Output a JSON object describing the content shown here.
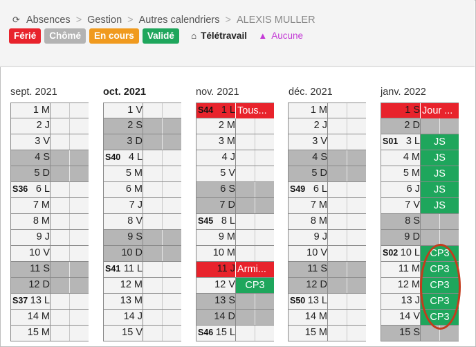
{
  "breadcrumb": {
    "icon": "refresh-icon",
    "items": [
      "Absences",
      "Gestion",
      "Autres calendriers"
    ],
    "current": "ALEXIS MULLER"
  },
  "legend": {
    "badges": [
      {
        "label": "Férié",
        "color": "#e8232c"
      },
      {
        "label": "Chômé",
        "color": "#b3b3b3"
      },
      {
        "label": "En cours",
        "color": "#f09a1e"
      },
      {
        "label": "Validé",
        "color": "#1ea65c"
      }
    ],
    "teletravail": {
      "label": "Télétravail",
      "icon": "home-icon"
    },
    "aucune": {
      "label": "Aucune",
      "icon": "graduation-cap-icon",
      "color": "#c43bd6"
    }
  },
  "months": [
    {
      "title": "sept. 2021",
      "bold": false,
      "days": [
        {
          "day": "1 M"
        },
        {
          "day": "2 J"
        },
        {
          "day": "3 V"
        },
        {
          "day": "4 S",
          "weekend": true
        },
        {
          "day": "5 D",
          "weekend": true
        },
        {
          "day": "6 L",
          "week": "S36"
        },
        {
          "day": "7 M"
        },
        {
          "day": "8 M"
        },
        {
          "day": "9 J"
        },
        {
          "day": "10 V"
        },
        {
          "day": "11 S",
          "weekend": true
        },
        {
          "day": "12 D",
          "weekend": true
        },
        {
          "day": "13 L",
          "week": "S37"
        },
        {
          "day": "14 M"
        },
        {
          "day": "15 M"
        }
      ]
    },
    {
      "title": "oct. 2021",
      "bold": true,
      "days": [
        {
          "day": "1 V"
        },
        {
          "day": "2 S",
          "weekend": true
        },
        {
          "day": "3 D",
          "weekend": true
        },
        {
          "day": "4 L",
          "week": "S40"
        },
        {
          "day": "5 M"
        },
        {
          "day": "6 M"
        },
        {
          "day": "7 J"
        },
        {
          "day": "8 V"
        },
        {
          "day": "9 S",
          "weekend": true
        },
        {
          "day": "10 D",
          "weekend": true
        },
        {
          "day": "11 L",
          "week": "S41"
        },
        {
          "day": "12 M"
        },
        {
          "day": "13 M"
        },
        {
          "day": "14 J"
        },
        {
          "day": "15 V"
        }
      ]
    },
    {
      "title": "nov. 2021",
      "bold": false,
      "days": [
        {
          "day": "1 L",
          "week": "S44",
          "ferie": true,
          "event": "Tous..."
        },
        {
          "day": "2 M"
        },
        {
          "day": "3 M"
        },
        {
          "day": "4 J"
        },
        {
          "day": "5 V"
        },
        {
          "day": "6 S",
          "weekend": true
        },
        {
          "day": "7 D",
          "weekend": true
        },
        {
          "day": "8 L",
          "week": "S45"
        },
        {
          "day": "9 M"
        },
        {
          "day": "10 M"
        },
        {
          "day": "11 J",
          "ferie": true,
          "event": "Armi..."
        },
        {
          "day": "12 V",
          "event": "CP3",
          "status": "valide"
        },
        {
          "day": "13 S",
          "weekend": true
        },
        {
          "day": "14 D",
          "weekend": true
        },
        {
          "day": "15 L",
          "week": "S46"
        }
      ]
    },
    {
      "title": "déc. 2021",
      "bold": false,
      "days": [
        {
          "day": "1 M"
        },
        {
          "day": "2 J"
        },
        {
          "day": "3 V"
        },
        {
          "day": "4 S",
          "weekend": true
        },
        {
          "day": "5 D",
          "weekend": true
        },
        {
          "day": "6 L",
          "week": "S49"
        },
        {
          "day": "7 M"
        },
        {
          "day": "8 M"
        },
        {
          "day": "9 J"
        },
        {
          "day": "10 V"
        },
        {
          "day": "11 S",
          "weekend": true
        },
        {
          "day": "12 D",
          "weekend": true
        },
        {
          "day": "13 L",
          "week": "S50"
        },
        {
          "day": "14 M"
        },
        {
          "day": "15 M"
        }
      ]
    },
    {
      "title": "janv. 2022",
      "bold": false,
      "days": [
        {
          "day": "1 S",
          "ferie": true,
          "event": "Jour ..."
        },
        {
          "day": "2 D",
          "weekend": true
        },
        {
          "day": "3 L",
          "week": "S01",
          "event": "JS",
          "status": "valide"
        },
        {
          "day": "4 M",
          "event": "JS",
          "status": "valide"
        },
        {
          "day": "5 M",
          "event": "JS",
          "status": "valide"
        },
        {
          "day": "6 J",
          "event": "JS",
          "status": "valide"
        },
        {
          "day": "7 V",
          "event": "JS",
          "status": "valide"
        },
        {
          "day": "8 S",
          "weekend": true
        },
        {
          "day": "9 D",
          "weekend": true
        },
        {
          "day": "10 L",
          "week": "S02",
          "event": "CP3",
          "status": "valide"
        },
        {
          "day": "11 M",
          "event": "CP3",
          "status": "valide"
        },
        {
          "day": "12 M",
          "event": "CP3",
          "status": "valide"
        },
        {
          "day": "13 J",
          "event": "CP3",
          "status": "valide"
        },
        {
          "day": "14 V",
          "event": "CP3",
          "status": "valide"
        },
        {
          "day": "15 S",
          "weekend": true
        }
      ]
    }
  ]
}
